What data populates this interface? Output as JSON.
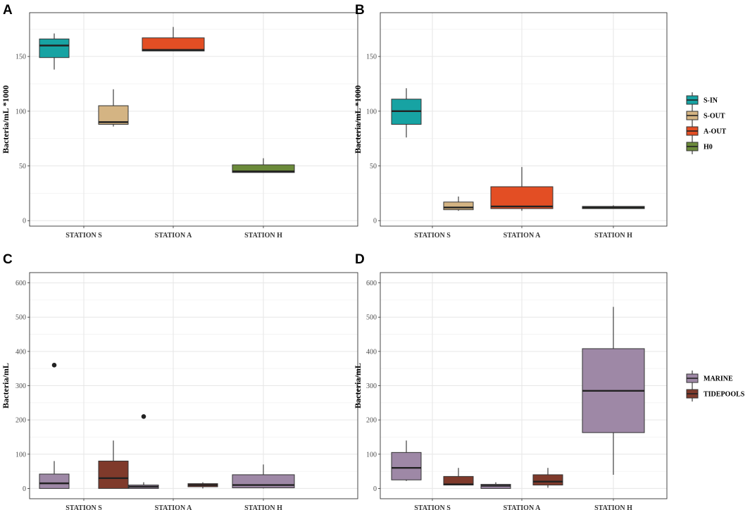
{
  "chart_data": [
    {
      "panel": "A",
      "type": "box",
      "ylabel": "Bacteria/mL *1000",
      "xlabel": "",
      "ylim": [
        -5,
        190
      ],
      "yticks": [
        0,
        50,
        100,
        150
      ],
      "yminor": [
        25,
        75,
        125,
        175
      ],
      "categories": [
        "STATION S",
        "STATION A",
        "STATION H"
      ],
      "legend": "A_legend",
      "boxes": [
        {
          "group": "S-IN",
          "category": 0,
          "offset": -1,
          "whislo": 138,
          "q1": 149,
          "med": 160,
          "q3": 166,
          "whishi": 171,
          "fliers": []
        },
        {
          "group": "S-OUT",
          "category": 0,
          "offset": 1,
          "whislo": 86,
          "q1": 88,
          "med": 90,
          "q3": 105,
          "whishi": 120,
          "fliers": []
        },
        {
          "group": "A-OUT",
          "category": 1,
          "offset": 0,
          "whislo": 155,
          "q1": 155,
          "med": 156,
          "q3": 167,
          "whishi": 177,
          "fliers": []
        },
        {
          "group": "H0",
          "category": 2,
          "offset": 0,
          "whislo": 44,
          "q1": 44,
          "med": 45,
          "q3": 51,
          "whishi": 57,
          "fliers": []
        }
      ]
    },
    {
      "panel": "B",
      "type": "box",
      "ylabel": "Bacteria/mL *1000",
      "xlabel": "",
      "ylim": [
        -5,
        190
      ],
      "yticks": [
        0,
        50,
        100,
        150
      ],
      "yminor": [
        25,
        75,
        125,
        175
      ],
      "categories": [
        "STATION S",
        "STATION A",
        "STATION H"
      ],
      "legend": "A_legend",
      "boxes": [
        {
          "group": "S-IN",
          "category": 0,
          "offset": -1,
          "whislo": 76,
          "q1": 88,
          "med": 100,
          "q3": 111,
          "whishi": 121,
          "fliers": []
        },
        {
          "group": "S-OUT",
          "category": 0,
          "offset": 1,
          "whislo": 9,
          "q1": 10,
          "med": 12,
          "q3": 17,
          "whishi": 22,
          "fliers": []
        },
        {
          "group": "A-OUT",
          "category": 1,
          "offset": 0,
          "whislo": 9,
          "q1": 11,
          "med": 13,
          "q3": 31,
          "whishi": 49,
          "fliers": []
        },
        {
          "group": "H0",
          "category": 2,
          "offset": 0,
          "whislo": 11,
          "q1": 11,
          "med": 12,
          "q3": 13,
          "whishi": 14,
          "fliers": []
        }
      ]
    },
    {
      "panel": "C",
      "type": "box",
      "ylabel": "Bacteria/mL",
      "xlabel": "",
      "ylim": [
        -30,
        630
      ],
      "yticks": [
        0,
        100,
        200,
        300,
        400,
        500,
        600
      ],
      "yminor": [
        50,
        150,
        250,
        350,
        450,
        550
      ],
      "categories": [
        "STATION S",
        "STATION A",
        "STATION H"
      ],
      "legend": "C_legend",
      "boxes": [
        {
          "group": "MARINE",
          "category": 0,
          "offset": -1,
          "whislo": 0,
          "q1": 0,
          "med": 15,
          "q3": 42,
          "whishi": 80,
          "fliers": [
            360
          ]
        },
        {
          "group": "TIDEPOOLS",
          "category": 0,
          "offset": 1,
          "whislo": 0,
          "q1": 0,
          "med": 30,
          "q3": 80,
          "whishi": 140,
          "fliers": []
        },
        {
          "group": "MARINE",
          "category": 1,
          "offset": -1,
          "whislo": 0,
          "q1": 0,
          "med": 5,
          "q3": 10,
          "whishi": 18,
          "fliers": [
            210
          ]
        },
        {
          "group": "TIDEPOOLS",
          "category": 1,
          "offset": 1,
          "whislo": 0,
          "q1": 5,
          "med": 10,
          "q3": 14,
          "whishi": 18,
          "fliers": []
        },
        {
          "group": "MARINE",
          "category": 2,
          "offset": 0,
          "whislo": 0,
          "q1": 2,
          "med": 10,
          "q3": 40,
          "whishi": 70,
          "fliers": []
        }
      ]
    },
    {
      "panel": "D",
      "type": "box",
      "ylabel": "Bacteria/mL",
      "xlabel": "",
      "ylim": [
        -30,
        630
      ],
      "yticks": [
        0,
        100,
        200,
        300,
        400,
        500,
        600
      ],
      "yminor": [
        50,
        150,
        250,
        350,
        450,
        550
      ],
      "categories": [
        "STATION S",
        "STATION A",
        "STATION H"
      ],
      "legend": "C_legend",
      "boxes": [
        {
          "group": "MARINE",
          "category": 0,
          "offset": -1,
          "whislo": 22,
          "q1": 25,
          "med": 60,
          "q3": 105,
          "whishi": 140,
          "fliers": []
        },
        {
          "group": "TIDEPOOLS",
          "category": 0,
          "offset": 1,
          "whislo": 10,
          "q1": 10,
          "med": 12,
          "q3": 35,
          "whishi": 60,
          "fliers": []
        },
        {
          "group": "MARINE",
          "category": 1,
          "offset": -1,
          "whislo": 0,
          "q1": 0,
          "med": 8,
          "q3": 12,
          "whishi": 18,
          "fliers": []
        },
        {
          "group": "TIDEPOOLS",
          "category": 1,
          "offset": 1,
          "whislo": 2,
          "q1": 10,
          "med": 20,
          "q3": 40,
          "whishi": 60,
          "fliers": []
        },
        {
          "group": "MARINE",
          "category": 2,
          "offset": 0,
          "whislo": 40,
          "q1": 163,
          "med": 285,
          "q3": 408,
          "whishi": 530,
          "fliers": []
        }
      ]
    }
  ],
  "legends": {
    "A_legend": [
      {
        "label": "S-IN",
        "color": "#17a3a3"
      },
      {
        "label": "S-OUT",
        "color": "#d4b483"
      },
      {
        "label": "A-OUT",
        "color": "#e34e24"
      },
      {
        "label": "H0",
        "color": "#6b8a3a"
      }
    ],
    "C_legend": [
      {
        "label": "MARINE",
        "color": "#9e88a6"
      },
      {
        "label": "TIDEPOOLS",
        "color": "#7f3a2b"
      }
    ]
  }
}
